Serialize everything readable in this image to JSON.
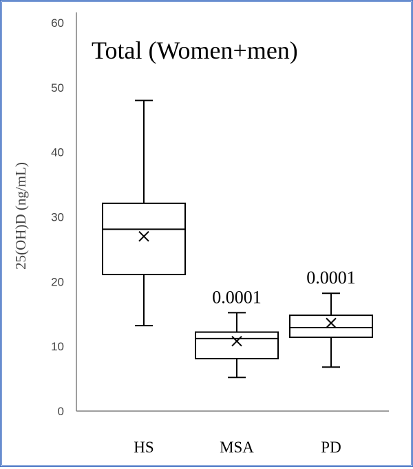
{
  "chart_data": {
    "type": "box",
    "title": "Total (Women+men)",
    "xlabel": "",
    "ylabel": "25(OH)D  (ng/mL)",
    "ylim": [
      0,
      60
    ],
    "yticks": [
      "0",
      "10",
      "20",
      "30",
      "40",
      "50",
      "60"
    ],
    "grid": false,
    "categories": [
      "HS",
      "MSA",
      "PD"
    ],
    "series": [
      {
        "name": "HS",
        "whisker_low": 13.2,
        "q1": 21.1,
        "median": 28.1,
        "mean": 27.0,
        "q3": 32.1,
        "whisker_high": 48.0,
        "annotation": ""
      },
      {
        "name": "MSA",
        "whisker_low": 5.2,
        "q1": 8.1,
        "median": 11.2,
        "mean": 10.8,
        "q3": 12.2,
        "whisker_high": 15.2,
        "annotation": "0.0001"
      },
      {
        "name": "PD",
        "whisker_low": 6.8,
        "q1": 11.4,
        "median": 12.9,
        "mean": 13.6,
        "q3": 14.8,
        "whisker_high": 18.2,
        "annotation": "0.0001"
      }
    ],
    "colors": {
      "frame": "#4472c4",
      "box": "#000000",
      "axis": "#7f7f7f"
    }
  }
}
